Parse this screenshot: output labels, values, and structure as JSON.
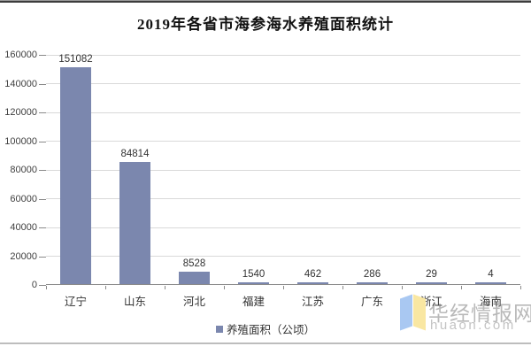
{
  "chart_data": {
    "type": "bar",
    "title": "2019年各省市海参海水养殖面积统计",
    "categories": [
      "辽宁",
      "山东",
      "河北",
      "福建",
      "江苏",
      "广东",
      "浙江",
      "海南"
    ],
    "values": [
      151082,
      84814,
      8528,
      1540,
      462,
      286,
      29,
      4
    ],
    "series": [
      {
        "name": "养殖面积（公顷）",
        "values": [
          151082,
          84814,
          8528,
          1540,
          462,
          286,
          29,
          4
        ]
      }
    ],
    "xlabel": "",
    "ylabel": "",
    "ylim": [
      0,
      160000
    ],
    "yticks": [
      0,
      20000,
      40000,
      60000,
      80000,
      100000,
      120000,
      140000,
      160000
    ],
    "grid": true,
    "data_labels": true,
    "legend_position": "bottom",
    "colors": {
      "bar": "#7b87ae",
      "gridline": "#d9d9d9",
      "axis": "#8a8a8a",
      "tick_label": "#404040",
      "data_label": "#333333"
    }
  },
  "legend": {
    "label": "养殖面积（公顷）",
    "swatch_color": "#7b87ae"
  },
  "watermark": {
    "name": "华经情报网",
    "url": "huaon.com",
    "logo": {
      "left_page_color": "#a9c8f2",
      "right_page_color": "#f9e7a2",
      "left_page_icon": "book-left-page-icon",
      "right_page_icon": "book-right-page-icon"
    }
  }
}
